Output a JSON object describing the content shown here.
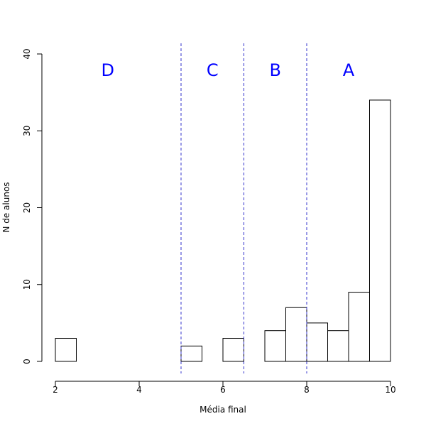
{
  "chart_data": {
    "type": "bar",
    "title": "",
    "xlabel": "Média final",
    "ylabel": "N de alunos",
    "xlim": [
      2,
      10
    ],
    "ylim": [
      0,
      40
    ],
    "x_ticks": [
      "2",
      "4",
      "6",
      "8",
      "10"
    ],
    "y_ticks": [
      "0",
      "10",
      "20",
      "30",
      "40"
    ],
    "bins": [
      {
        "from": 2.0,
        "to": 2.5,
        "count": 3
      },
      {
        "from": 2.5,
        "to": 3.0,
        "count": 0
      },
      {
        "from": 3.0,
        "to": 3.5,
        "count": 0
      },
      {
        "from": 3.5,
        "to": 4.0,
        "count": 0
      },
      {
        "from": 4.0,
        "to": 4.5,
        "count": 0
      },
      {
        "from": 4.5,
        "to": 5.0,
        "count": 0
      },
      {
        "from": 5.0,
        "to": 5.5,
        "count": 2
      },
      {
        "from": 5.5,
        "to": 6.0,
        "count": 0
      },
      {
        "from": 6.0,
        "to": 6.5,
        "count": 3
      },
      {
        "from": 6.5,
        "to": 7.0,
        "count": 0
      },
      {
        "from": 7.0,
        "to": 7.5,
        "count": 4
      },
      {
        "from": 7.5,
        "to": 8.0,
        "count": 7
      },
      {
        "from": 8.0,
        "to": 8.5,
        "count": 5
      },
      {
        "from": 8.5,
        "to": 9.0,
        "count": 4
      },
      {
        "from": 9.0,
        "to": 9.5,
        "count": 9
      },
      {
        "from": 9.5,
        "to": 10.0,
        "count": 34
      }
    ],
    "cutoffs": [
      5,
      6.5,
      8
    ],
    "cutoff_color": "#3333cc",
    "grade_labels": [
      {
        "text": "D",
        "x": 3.25
      },
      {
        "text": "C",
        "x": 5.75
      },
      {
        "text": "B",
        "x": 7.25
      },
      {
        "text": "A",
        "x": 9.0
      }
    ],
    "grade_label_color": "#0000ff",
    "grid": false
  }
}
